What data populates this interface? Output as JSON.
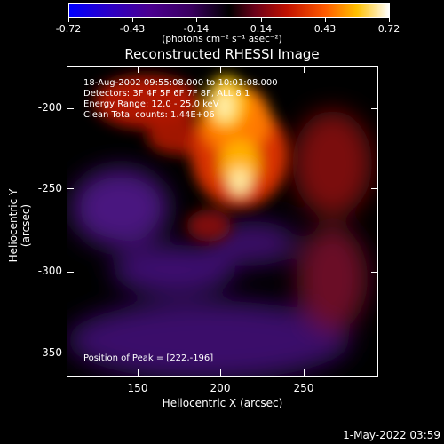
{
  "colorbar": {
    "ticks": [
      "-0.72",
      "-0.43",
      "-0.14",
      "0.14",
      "0.43",
      "0.72"
    ],
    "unit": "(photons cm⁻² s⁻¹ asec⁻²)"
  },
  "title": "Reconstructed RHESSI Image",
  "plot": {
    "y_ticks": [
      "-200",
      "-250",
      "-300",
      "-350"
    ],
    "x_ticks": [
      "150",
      "200",
      "250"
    ],
    "ylabel": "Heliocentric Y (arcsec)",
    "xlabel": "Heliocentric X (arcsec)",
    "info_lines": [
      "18-Aug-2002 09:55:08.000 to 10:01:08.000",
      "Detectors: 3F 4F 5F 6F 7F 8F, ALL 8 1",
      "Energy Range: 12.0 - 25.0 keV",
      "Clean     Total counts: 1.44E+06"
    ],
    "peak": "Position of Peak = [222,-196]"
  },
  "footer": "1-May-2022 03:59"
}
